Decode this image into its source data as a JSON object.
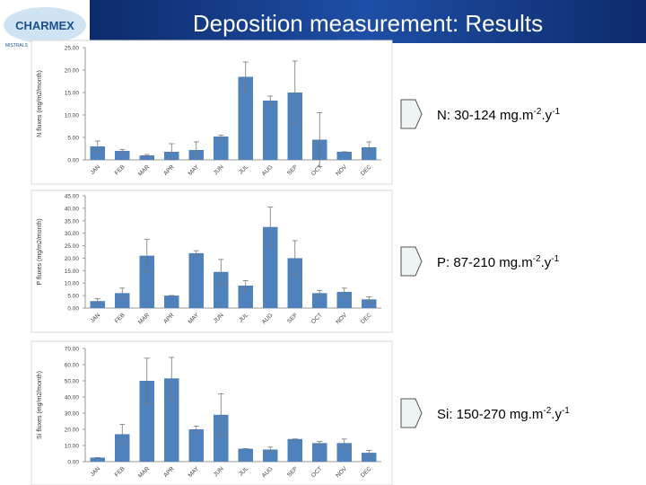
{
  "slide_title": "Deposition measurement: Results",
  "logo": {
    "name": "CHARMEX",
    "program": "MISTRALS"
  },
  "chart_data": [
    {
      "type": "bar",
      "y_label": "N fluxes (mg/m2/month)",
      "color": "#4f81bd",
      "categories": [
        "JAN",
        "FEB",
        "MAR",
        "APR",
        "MAY",
        "JUN",
        "JUL",
        "AUG",
        "SEP",
        "OCT",
        "NOV",
        "DEC"
      ],
      "values": [
        3,
        2,
        1,
        1.8,
        2.2,
        5.2,
        18.5,
        13.2,
        15,
        4.5,
        1.8,
        2.8
      ],
      "errors": [
        1.2,
        0.3,
        0.2,
        1.8,
        1.8,
        0.3,
        3.3,
        1,
        7,
        6,
        0,
        1.2
      ],
      "ylim": [
        0,
        25
      ],
      "yticks": [
        {
          "value": 0,
          "label": "0.00"
        },
        {
          "value": 5,
          "label": "5.00"
        },
        {
          "value": 10,
          "label": "10.00"
        },
        {
          "value": 15,
          "label": "15.00"
        },
        {
          "value": 20,
          "label": "20.00"
        },
        {
          "value": 25,
          "label": "25.00"
        }
      ],
      "annotation": [
        "N: 30-124 mg.m",
        "-2",
        ".y",
        "-1"
      ]
    },
    {
      "type": "bar",
      "y_label": "P fluxes (mg/m2/month)",
      "color": "#4f81bd",
      "categories": [
        "JAN",
        "FEB",
        "MAR",
        "APR",
        "MAY",
        "JUN",
        "JUL",
        "AUG",
        "SEP",
        "OCT",
        "NOV",
        "DEC"
      ],
      "values": [
        2.8,
        6,
        21,
        5,
        22,
        14.5,
        9,
        32.5,
        20,
        6,
        6.5,
        3.5
      ],
      "errors": [
        1,
        2,
        6.5,
        0,
        1,
        5,
        2,
        8,
        7,
        1,
        1.5,
        1
      ],
      "ylim": [
        0,
        45
      ],
      "yticks": [
        {
          "value": 0,
          "label": "0.00"
        },
        {
          "value": 5,
          "label": "5.00"
        },
        {
          "value": 10,
          "label": "10.00"
        },
        {
          "value": 15,
          "label": "15.00"
        },
        {
          "value": 20,
          "label": "20.00"
        },
        {
          "value": 25,
          "label": "25.00"
        },
        {
          "value": 30,
          "label": "30.00"
        },
        {
          "value": 35,
          "label": "35.00"
        },
        {
          "value": 40,
          "label": "40.00"
        },
        {
          "value": 45,
          "label": "45.00"
        }
      ],
      "annotation": [
        "P: 87-210 mg.m",
        "-2",
        ".y",
        "-1"
      ]
    },
    {
      "type": "bar",
      "y_label": "Si fluxes (mg/m2/month)",
      "color": "#4f81bd",
      "categories": [
        "JAN",
        "FEB",
        "MAR",
        "APR",
        "MAY",
        "JUN",
        "JUL",
        "AUG",
        "SEP",
        "OCT",
        "NOV",
        "DEC"
      ],
      "values": [
        2.5,
        17,
        50,
        51.5,
        20,
        29,
        8,
        7.5,
        14,
        11.5,
        11.5,
        5.5
      ],
      "errors": [
        0,
        6,
        14,
        13,
        2,
        13,
        0,
        1.5,
        0,
        1,
        2.5,
        1.5
      ],
      "ylim": [
        0,
        70
      ],
      "yticks": [
        {
          "value": 0,
          "label": "0.00"
        },
        {
          "value": 10,
          "label": "10.00"
        },
        {
          "value": 20,
          "label": "20.00"
        },
        {
          "value": 30,
          "label": "30.00"
        },
        {
          "value": 40,
          "label": "40.00"
        },
        {
          "value": 50,
          "label": "50.00"
        },
        {
          "value": 60,
          "label": "60.00"
        },
        {
          "value": 70,
          "label": "70.00"
        }
      ],
      "annotation": [
        "Si: 150-270 mg.m",
        "-2",
        ".y",
        "-1"
      ]
    }
  ]
}
